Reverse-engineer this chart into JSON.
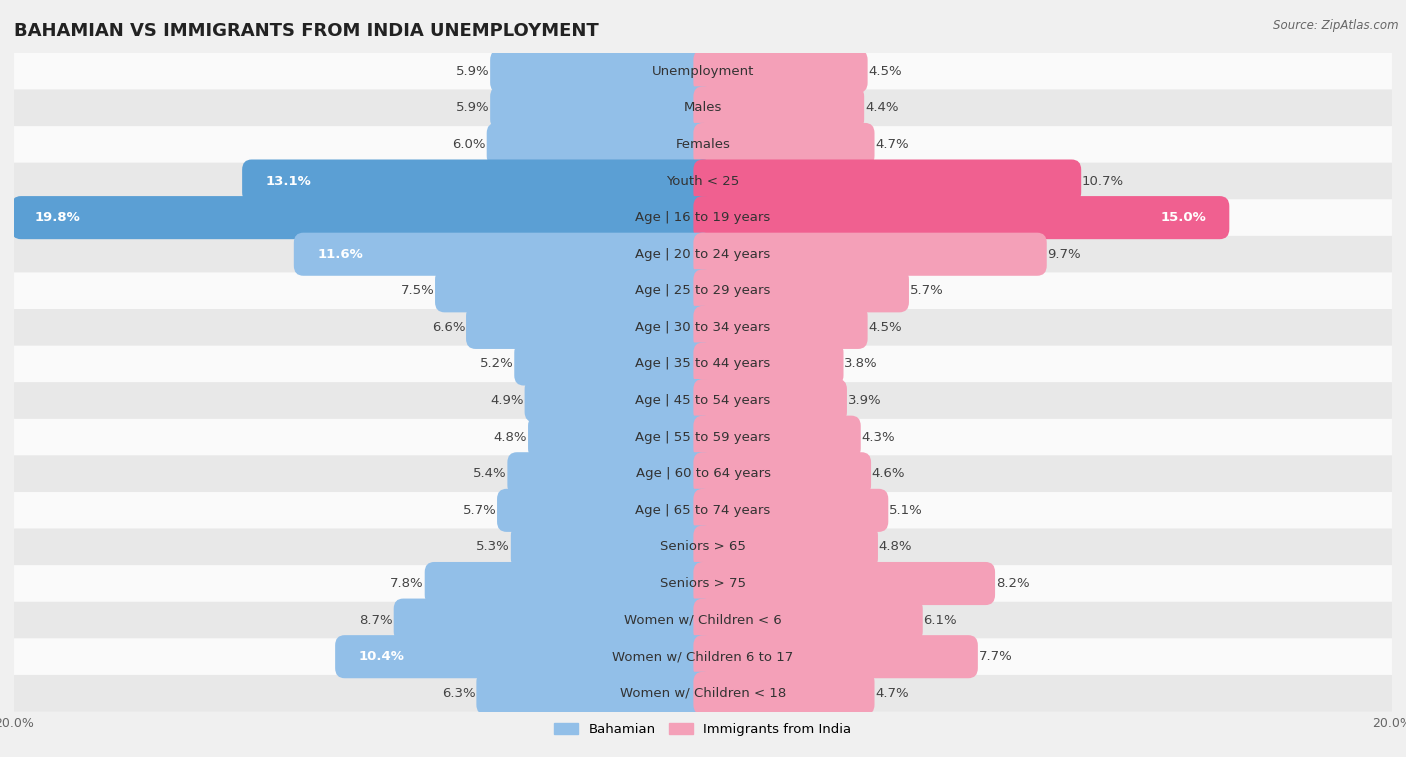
{
  "title": "BAHAMIAN VS IMMIGRANTS FROM INDIA UNEMPLOYMENT",
  "source": "Source: ZipAtlas.com",
  "categories": [
    "Unemployment",
    "Males",
    "Females",
    "Youth < 25",
    "Age | 16 to 19 years",
    "Age | 20 to 24 years",
    "Age | 25 to 29 years",
    "Age | 30 to 34 years",
    "Age | 35 to 44 years",
    "Age | 45 to 54 years",
    "Age | 55 to 59 years",
    "Age | 60 to 64 years",
    "Age | 65 to 74 years",
    "Seniors > 65",
    "Seniors > 75",
    "Women w/ Children < 6",
    "Women w/ Children 6 to 17",
    "Women w/ Children < 18"
  ],
  "bahamian": [
    5.9,
    5.9,
    6.0,
    13.1,
    19.8,
    11.6,
    7.5,
    6.6,
    5.2,
    4.9,
    4.8,
    5.4,
    5.7,
    5.3,
    7.8,
    8.7,
    10.4,
    6.3
  ],
  "india": [
    4.5,
    4.4,
    4.7,
    10.7,
    15.0,
    9.7,
    5.7,
    4.5,
    3.8,
    3.9,
    4.3,
    4.6,
    5.1,
    4.8,
    8.2,
    6.1,
    7.7,
    4.7
  ],
  "bahamian_color": "#92bfe8",
  "india_color": "#f4a0b8",
  "bahamian_color_highlight": "#5b9fd4",
  "india_color_highlight": "#f06090",
  "background_color": "#f0f0f0",
  "row_bg_white": "#fafafa",
  "row_bg_gray": "#e8e8e8",
  "axis_limit": 20.0,
  "label_fontsize": 9.5,
  "title_fontsize": 13,
  "legend_label_bahamian": "Bahamian",
  "legend_label_india": "Immigrants from India",
  "highlight_rows": [
    3,
    4
  ]
}
